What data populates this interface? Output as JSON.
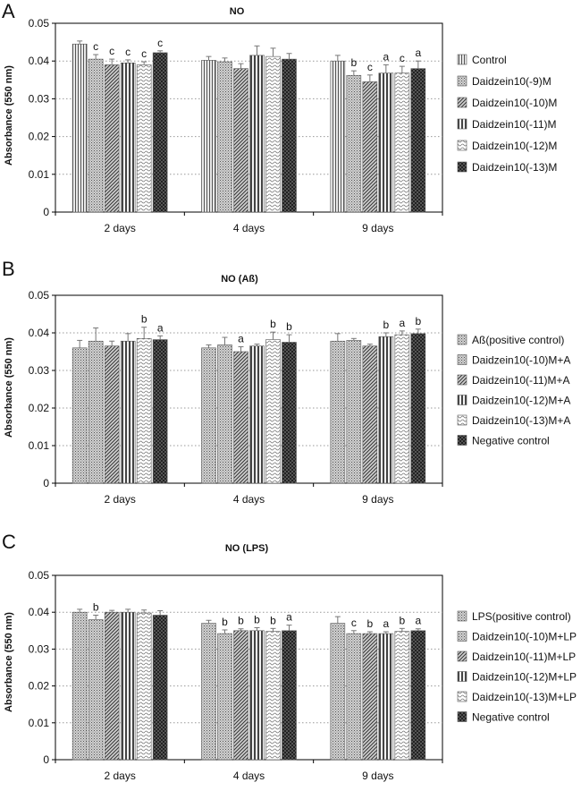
{
  "patterns": [
    "p-vert",
    "p-dots",
    "p-diag-r",
    "p-vert-thick",
    "p-wavy",
    "p-check",
    "p-diag-l"
  ],
  "chart_data": [
    {
      "panel": "A",
      "type": "bar",
      "title": "NO",
      "ylabel": "Absorbance (550 nm)",
      "ylim": [
        0,
        0.05
      ],
      "yticks": [
        0,
        0.01,
        0.02,
        0.03,
        0.04,
        0.05
      ],
      "categories": [
        "2 days",
        "4 days",
        "9 days"
      ],
      "grid": "dotted-horizontal",
      "legend_position": "right",
      "series": [
        {
          "name": "Control",
          "pattern": "p-vert",
          "values": [
            0.0445,
            0.0402,
            0.04
          ],
          "errors": [
            0.0008,
            0.001,
            0.0015
          ],
          "labels": [
            "",
            "",
            ""
          ]
        },
        {
          "name": "Daidzein10(-9)M",
          "pattern": "p-dots",
          "values": [
            0.0405,
            0.0398,
            0.0362
          ],
          "errors": [
            0.0012,
            0.001,
            0.0012
          ],
          "labels": [
            "c",
            "",
            "b"
          ]
        },
        {
          "name": "Daidzein10(-10)M",
          "pattern": "p-diag-r",
          "values": [
            0.039,
            0.038,
            0.0345
          ],
          "errors": [
            0.0015,
            0.0013,
            0.0018
          ],
          "labels": [
            "c",
            "",
            "c"
          ]
        },
        {
          "name": "Daidzein10(-11)M",
          "pattern": "p-vert-thick",
          "values": [
            0.0395,
            0.0415,
            0.0368
          ],
          "errors": [
            0.0008,
            0.0025,
            0.0022
          ],
          "labels": [
            "c",
            "",
            "a"
          ]
        },
        {
          "name": "Daidzein10(-12)M",
          "pattern": "p-wavy",
          "values": [
            0.039,
            0.0412,
            0.0368
          ],
          "errors": [
            0.0008,
            0.0022,
            0.0018
          ],
          "labels": [
            "c",
            "",
            "c"
          ]
        },
        {
          "name": "Daidzein10(-13)M",
          "pattern": "p-check",
          "values": [
            0.0422,
            0.0405,
            0.038
          ],
          "errors": [
            0.0005,
            0.0015,
            0.002
          ],
          "labels": [
            "c",
            "",
            "a"
          ]
        }
      ]
    },
    {
      "panel": "B",
      "type": "bar",
      "title": "NO (Aß)",
      "ylabel": "Absorbance (550 nm)",
      "ylim": [
        0,
        0.05
      ],
      "yticks": [
        0,
        0.01,
        0.02,
        0.03,
        0.04,
        0.05
      ],
      "categories": [
        "2 days",
        "4 days",
        "9 days"
      ],
      "grid": "dotted-horizontal",
      "legend_position": "right",
      "series": [
        {
          "name": "Aß(positive control)",
          "pattern": "p-dots",
          "values": [
            0.036,
            0.036,
            0.0378
          ],
          "errors": [
            0.002,
            0.0008,
            0.002
          ],
          "labels": [
            "",
            "",
            ""
          ]
        },
        {
          "name": "Daidzein10(-10)M+A",
          "pattern": "p-dots",
          "values": [
            0.0378,
            0.0368,
            0.038
          ],
          "errors": [
            0.0035,
            0.002,
            0.0005
          ],
          "labels": [
            "",
            "",
            ""
          ]
        },
        {
          "name": "Daidzein10(-11)M+A",
          "pattern": "p-diag-r",
          "values": [
            0.0365,
            0.035,
            0.0365
          ],
          "errors": [
            0.0013,
            0.0013,
            0.0005
          ],
          "labels": [
            "",
            "a",
            ""
          ]
        },
        {
          "name": "Daidzein10(-12)M+A",
          "pattern": "p-vert-thick",
          "values": [
            0.0378,
            0.0365,
            0.039
          ],
          "errors": [
            0.002,
            0.0005,
            0.001
          ],
          "labels": [
            "",
            "",
            "b"
          ]
        },
        {
          "name": "Daidzein10(-13)M+A",
          "pattern": "p-wavy",
          "values": [
            0.0385,
            0.0382,
            0.0395
          ],
          "errors": [
            0.003,
            0.002,
            0.001
          ],
          "labels": [
            "b",
            "b",
            "a"
          ]
        },
        {
          "name": "Negative control",
          "pattern": "p-check",
          "values": [
            0.0382,
            0.0375,
            0.0398
          ],
          "errors": [
            0.001,
            0.002,
            0.0012
          ],
          "labels": [
            "a",
            "b",
            "b"
          ]
        }
      ]
    },
    {
      "panel": "C",
      "type": "bar",
      "title": "NO (LPS)",
      "ylabel": "Absorbance (550 nm)",
      "ylim": [
        0,
        0.05
      ],
      "yticks": [
        0,
        0.01,
        0.02,
        0.03,
        0.04,
        0.05
      ],
      "categories": [
        "2 days",
        "4 days",
        "9 days"
      ],
      "grid": "dotted-horizontal",
      "legend_position": "right",
      "series": [
        {
          "name": "LPS(positive control)",
          "pattern": "p-dots",
          "values": [
            0.04,
            0.037,
            0.037
          ],
          "errors": [
            0.0008,
            0.0008,
            0.0018
          ],
          "labels": [
            "",
            "",
            ""
          ]
        },
        {
          "name": "Daidzein10(-10)M+LP",
          "pattern": "p-dots",
          "values": [
            0.038,
            0.0342,
            0.0342
          ],
          "errors": [
            0.0012,
            0.001,
            0.0008
          ],
          "labels": [
            "b",
            "b",
            "c"
          ]
        },
        {
          "name": "Daidzein10(-11)M+LP",
          "pattern": "p-diag-r",
          "values": [
            0.04,
            0.035,
            0.0342
          ],
          "errors": [
            0.0005,
            0.0005,
            0.0005
          ],
          "labels": [
            "",
            "b",
            "b"
          ]
        },
        {
          "name": "Daidzein10(-12)M+LP",
          "pattern": "p-vert-thick",
          "values": [
            0.04,
            0.035,
            0.0342
          ],
          "errors": [
            0.0008,
            0.0008,
            0.0005
          ],
          "labels": [
            "",
            "b",
            "a"
          ]
        },
        {
          "name": "Daidzein10(-13)M+LP",
          "pattern": "p-wavy",
          "values": [
            0.0398,
            0.0348,
            0.0348
          ],
          "errors": [
            0.0008,
            0.0008,
            0.0008
          ],
          "labels": [
            "",
            "b",
            "b"
          ]
        },
        {
          "name": "Negative control",
          "pattern": "p-check",
          "values": [
            0.0392,
            0.035,
            0.035
          ],
          "errors": [
            0.0012,
            0.0015,
            0.0005
          ],
          "labels": [
            "",
            "a",
            "a"
          ]
        }
      ]
    }
  ]
}
